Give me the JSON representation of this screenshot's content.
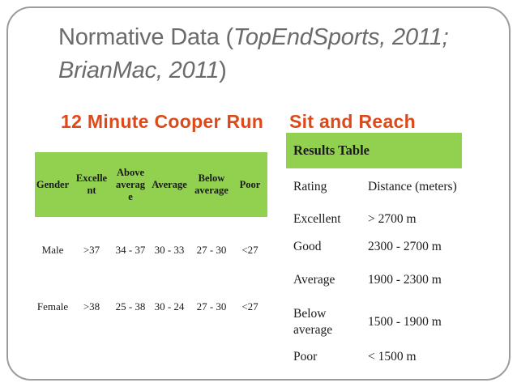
{
  "colors": {
    "accent_orange": "#dc4a1b",
    "table_green": "#92d050",
    "title_gray": "#6b6b6b",
    "border_gray": "#9c9c9c",
    "text_dark": "#1a1a1a"
  },
  "slide": {
    "title": {
      "prefix": "Normative Data (",
      "citation": "TopEndSports, 2011; BrianMac, 2011",
      "suffix": ")"
    },
    "sections": {
      "left_heading": "12 Minute Cooper Run",
      "right_heading": "Sit and Reach"
    }
  },
  "cooper_table": {
    "header_cells": [
      {
        "label": "Gender",
        "lines": [
          "Gender"
        ]
      },
      {
        "label": "Excellent",
        "lines": [
          "Excelle",
          "nt"
        ]
      },
      {
        "label": "Above average",
        "lines": [
          "Above",
          "averag",
          "e"
        ]
      },
      {
        "label": "Average",
        "lines": [
          "Average"
        ]
      },
      {
        "label": "Below average",
        "lines": [
          "Below",
          "average"
        ]
      },
      {
        "label": "Poor",
        "lines": [
          "Poor"
        ]
      }
    ],
    "rows": [
      [
        "Male",
        ">37",
        "34 - 37",
        "30 - 33",
        "27 - 30",
        "<27"
      ],
      [
        "Female",
        ">38",
        "25 - 38",
        "30 - 24",
        "27 - 30",
        "<27"
      ]
    ]
  },
  "sit_reach_table": {
    "header": "Results Table",
    "rows": [
      {
        "rating": "Rating",
        "distance": "Distance (meters)"
      },
      {
        "rating": "Excellent",
        "distance": "> 2700 m"
      },
      {
        "rating": "Good",
        "distance": "2300 - 2700 m"
      },
      {
        "rating": "Average",
        "distance": "1900 - 2300 m"
      },
      {
        "rating": "Below average",
        "distance": "1500 - 1900 m"
      },
      {
        "rating": "Poor",
        "distance": "< 1500 m"
      }
    ]
  }
}
